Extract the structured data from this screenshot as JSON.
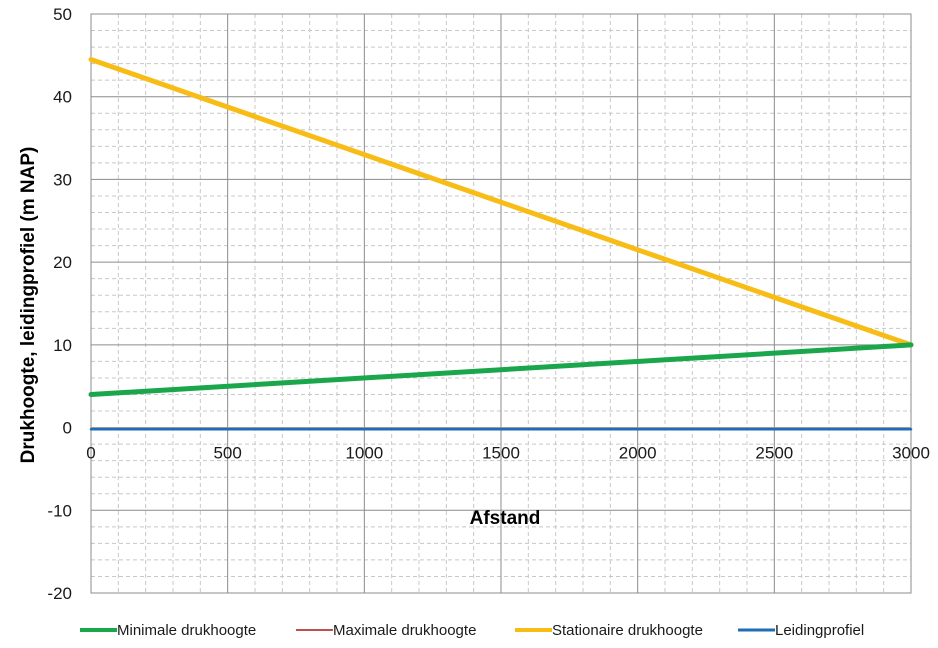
{
  "chart_data": {
    "type": "line",
    "xlabel": "Afstand",
    "ylabel": "Drukhoogte, leidingprofiel (m NAP)",
    "xlim": [
      0,
      3000
    ],
    "ylim": [
      -20,
      50
    ],
    "x_ticks": [
      0,
      500,
      1000,
      1500,
      2000,
      2500,
      3000
    ],
    "y_ticks": [
      -20,
      -10,
      0,
      10,
      20,
      30,
      40,
      50
    ],
    "grid": true,
    "legend_position": "bottom",
    "series": [
      {
        "name": "Minimale drukhoogte",
        "color": "#1aa64a",
        "points": [
          [
            0,
            4
          ],
          [
            3000,
            10
          ]
        ]
      },
      {
        "name": "Maximale drukhoogte",
        "color": "#c0504d",
        "points": [
          [
            2970,
            10.3
          ],
          [
            3000,
            10
          ]
        ]
      },
      {
        "name": "Stationaire drukhoogte",
        "color": "#f7bd16",
        "points": [
          [
            0,
            44.5
          ],
          [
            3000,
            10
          ]
        ]
      },
      {
        "name": "Leidingprofiel",
        "color": "#1f6eb5",
        "points": [
          [
            0,
            -0.2
          ],
          [
            3000,
            -0.2
          ]
        ]
      }
    ]
  }
}
